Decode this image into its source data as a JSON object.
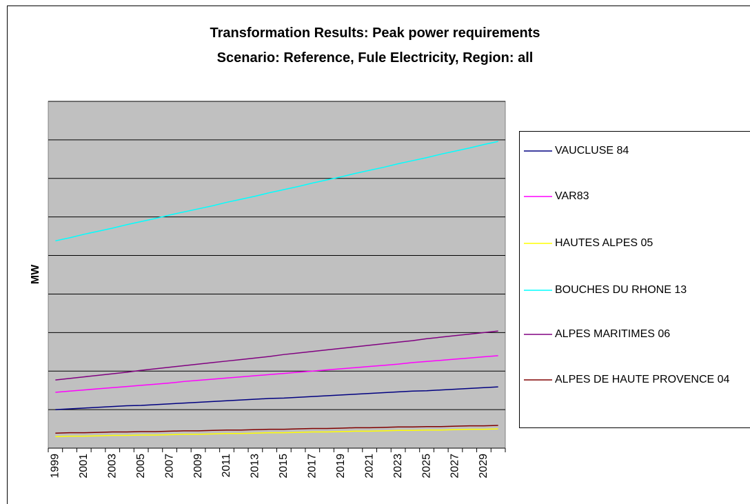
{
  "chart_data": {
    "type": "line",
    "title": "Transformation Results: Peak power requirements",
    "subtitle": "Scenario: Reference, Fule Electricity, Region: all",
    "y_label": "MW",
    "categories": [
      "1999",
      null,
      "2001",
      null,
      "2003",
      null,
      "2005",
      null,
      "2007",
      null,
      "2009",
      null,
      "2011",
      null,
      "2013",
      null,
      "2015",
      null,
      "2017",
      null,
      "2019",
      null,
      "2021",
      null,
      "2023",
      null,
      "2025",
      null,
      "2027",
      null,
      "2029",
      null
    ],
    "series": [
      {
        "name": "VAUCLUSE 84",
        "color": "#000080",
        "values": [
          1.0,
          1.02,
          1.04,
          1.06,
          1.08,
          1.1,
          1.11,
          1.13,
          1.15,
          1.17,
          1.19,
          1.21,
          1.23,
          1.25,
          1.27,
          1.29,
          1.3,
          1.32,
          1.34,
          1.36,
          1.38,
          1.4,
          1.42,
          1.44,
          1.46,
          1.48,
          1.49,
          1.51,
          1.53,
          1.55,
          1.57,
          1.59
        ]
      },
      {
        "name": "VAR83",
        "color": "#ff00ff",
        "values": [
          1.45,
          1.48,
          1.51,
          1.54,
          1.57,
          1.6,
          1.63,
          1.66,
          1.69,
          1.73,
          1.76,
          1.79,
          1.82,
          1.85,
          1.88,
          1.91,
          1.94,
          1.97,
          2.0,
          2.03,
          2.06,
          2.09,
          2.12,
          2.15,
          2.18,
          2.22,
          2.25,
          2.28,
          2.31,
          2.34,
          2.37,
          2.4
        ]
      },
      {
        "name": "HAUTES ALPES 05",
        "color": "#ffff00",
        "values": [
          0.3,
          0.31,
          0.31,
          0.32,
          0.33,
          0.33,
          0.34,
          0.34,
          0.35,
          0.36,
          0.36,
          0.37,
          0.38,
          0.38,
          0.39,
          0.4,
          0.4,
          0.41,
          0.42,
          0.42,
          0.43,
          0.44,
          0.44,
          0.45,
          0.46,
          0.46,
          0.47,
          0.47,
          0.48,
          0.49,
          0.49,
          0.5
        ]
      },
      {
        "name": "BOUCHES DU RHONE 13",
        "color": "#00ffff",
        "values": [
          5.38,
          5.46,
          5.55,
          5.63,
          5.71,
          5.8,
          5.88,
          5.96,
          6.05,
          6.13,
          6.21,
          6.29,
          6.38,
          6.46,
          6.54,
          6.63,
          6.71,
          6.79,
          6.88,
          6.96,
          7.04,
          7.13,
          7.21,
          7.29,
          7.38,
          7.46,
          7.54,
          7.63,
          7.71,
          7.79,
          7.88,
          7.96
        ]
      },
      {
        "name": "ALPES MARITIMES 06",
        "color": "#800080",
        "values": [
          1.77,
          1.81,
          1.85,
          1.89,
          1.93,
          1.97,
          2.02,
          2.06,
          2.1,
          2.14,
          2.18,
          2.22,
          2.26,
          2.3,
          2.34,
          2.38,
          2.43,
          2.47,
          2.51,
          2.55,
          2.59,
          2.63,
          2.67,
          2.71,
          2.75,
          2.79,
          2.84,
          2.88,
          2.92,
          2.96,
          3.0,
          3.04
        ]
      },
      {
        "name": "ALPES DE HAUTE PROVENCE 04",
        "color": "#800000",
        "values": [
          0.39,
          0.4,
          0.4,
          0.41,
          0.42,
          0.42,
          0.43,
          0.43,
          0.44,
          0.45,
          0.45,
          0.46,
          0.47,
          0.47,
          0.48,
          0.49,
          0.49,
          0.5,
          0.51,
          0.51,
          0.52,
          0.53,
          0.53,
          0.54,
          0.55,
          0.55,
          0.56,
          0.56,
          0.57,
          0.58,
          0.58,
          0.59
        ]
      }
    ],
    "ylim": [
      0,
      9
    ],
    "yticks": [
      0,
      1,
      2,
      3,
      4,
      5,
      6,
      7,
      8,
      9
    ],
    "grid": true,
    "plot_background": "#c0c0c0",
    "legend": "right"
  }
}
